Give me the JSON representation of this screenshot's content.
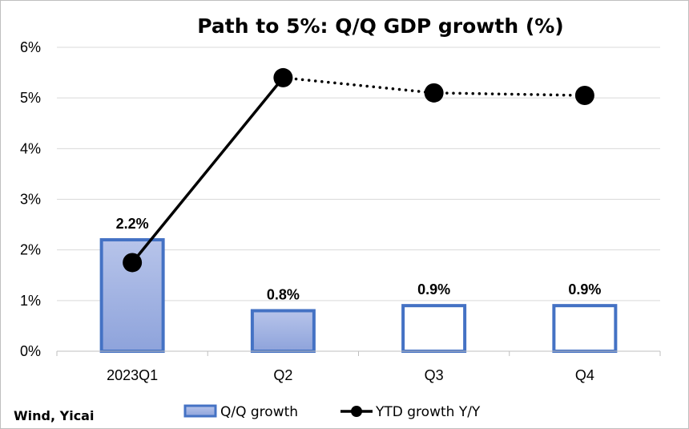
{
  "chart_data": {
    "type": "bar",
    "title": "Path to 5%: Q/Q GDP growth (%)",
    "categories": [
      "2023Q1",
      "Q2",
      "Q3",
      "Q4"
    ],
    "ylim": [
      0,
      6
    ],
    "yticks": [
      "0%",
      "1%",
      "2%",
      "3%",
      "4%",
      "5%",
      "6%"
    ],
    "grid": true,
    "legend_position": "bottom",
    "series": [
      {
        "name": "Q/Q growth",
        "type": "bar",
        "values": [
          2.2,
          0.8,
          0.9,
          0.9
        ],
        "labels": [
          "2.2%",
          "0.8%",
          "0.9%",
          "0.9%"
        ],
        "filled": [
          true,
          true,
          false,
          false
        ],
        "color": "#4472c4",
        "fill_color": "#9fb1e0"
      },
      {
        "name": "YTD growth Y/Y",
        "type": "line",
        "values": [
          1.75,
          5.4,
          5.1,
          5.05
        ],
        "line_styles": [
          "solid",
          "dotted",
          "dotted"
        ],
        "color": "#000000"
      }
    ],
    "source": "Wind, Yicai"
  }
}
